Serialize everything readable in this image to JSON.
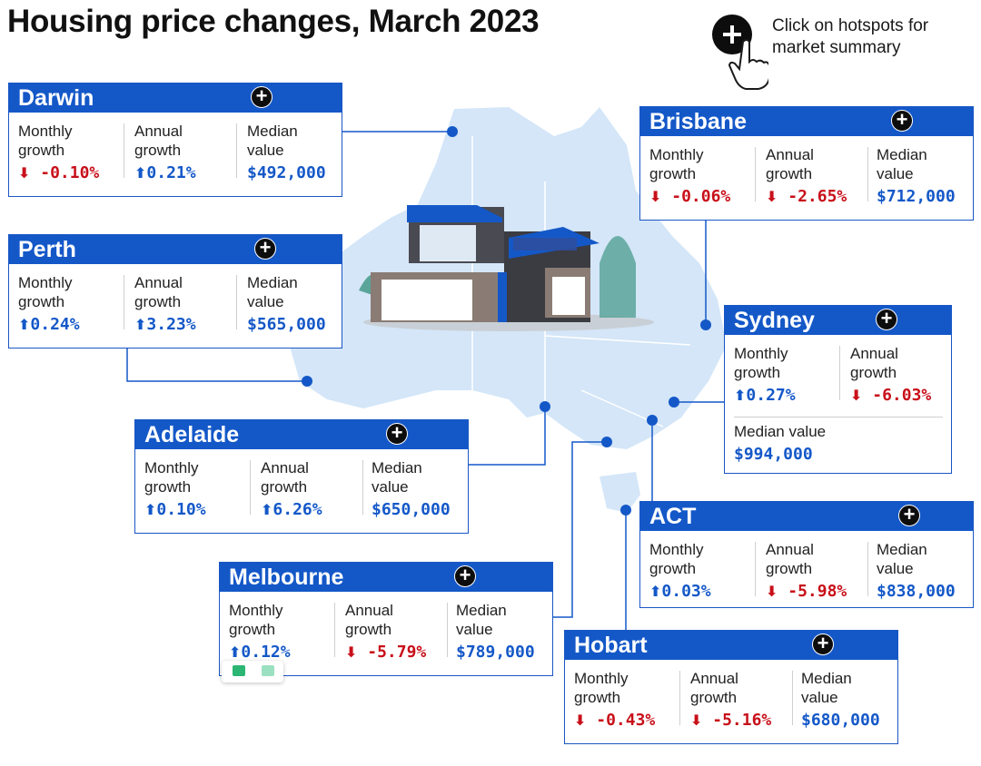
{
  "title": "Housing price changes, March 2023",
  "hint": {
    "line1": "Click on hotspots for",
    "line2": "market summary",
    "icon": "hand-pointer-plus-icon"
  },
  "labels": {
    "monthly_1": "Monthly",
    "monthly_2": "growth",
    "annual_1": "Annual",
    "annual_2": "growth",
    "median_1": "Median",
    "median_2": "value",
    "median_full": "Median value"
  },
  "colors": {
    "brand_blue": "#1458c8",
    "negative_red": "#c8101a",
    "map_fill": "#d4e6f8"
  },
  "cities": {
    "darwin": {
      "name": "Darwin",
      "monthly": "-0.10%",
      "annual": "0.21%",
      "median": "$492,000"
    },
    "perth": {
      "name": "Perth",
      "monthly": "0.24%",
      "annual": "3.23%",
      "median": "$565,000"
    },
    "adelaide": {
      "name": "Adelaide",
      "monthly": "0.10%",
      "annual": "6.26%",
      "median": "$650,000"
    },
    "melbourne": {
      "name": "Melbourne",
      "monthly": "0.12%",
      "annual": "-5.79%",
      "median": "$789,000"
    },
    "brisbane": {
      "name": "Brisbane",
      "monthly": "-0.06%",
      "annual": "-2.65%",
      "median": "$712,000"
    },
    "sydney": {
      "name": "Sydney",
      "monthly": "0.27%",
      "annual": "-6.03%",
      "median": "$994,000"
    },
    "act": {
      "name": "ACT",
      "monthly": "0.03%",
      "annual": "-5.98%",
      "median": "$838,000"
    },
    "hobart": {
      "name": "Hobart",
      "monthly": "-0.43%",
      "annual": "-5.16%",
      "median": "$680,000"
    }
  }
}
